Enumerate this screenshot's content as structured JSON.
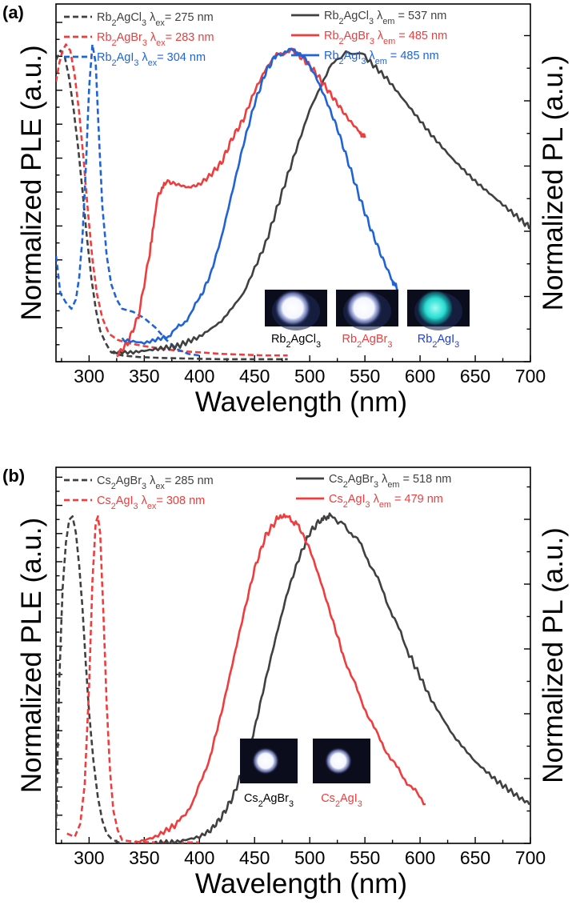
{
  "chart_data": [
    {
      "type": "line",
      "panel": "(a)",
      "xlabel": "Wavelength (nm)",
      "ylabel_left": "Normalized PLE (a.u.)",
      "ylabel_right": "Normalized PL (a.u.)",
      "xlim": [
        270,
        700
      ],
      "ylim": [
        0,
        1.15
      ],
      "xticks": [
        300,
        350,
        400,
        450,
        500,
        550,
        600,
        650,
        700
      ],
      "legend_left": [
        {
          "formula": "Rb2AgCl3",
          "param": "ex",
          "value": "275 nm",
          "color": "#404040",
          "style": "dashed"
        },
        {
          "formula": "Rb2AgBr3",
          "param": "ex",
          "value": "283 nm",
          "color": "#f03c3c",
          "style": "dashed"
        },
        {
          "formula": "Rb2AgI3",
          "param": "ex",
          "value": "304 nm",
          "color": "#1f63d6",
          "style": "dashed"
        }
      ],
      "legend_right": [
        {
          "formula": "Rb2AgCl3",
          "param": "em",
          "value": "537 nm",
          "color": "#404040",
          "style": "solid"
        },
        {
          "formula": "Rb2AgBr3",
          "param": "em",
          "value": "485 nm",
          "color": "#f03c3c",
          "style": "solid"
        },
        {
          "formula": "Rb2AgI3",
          "param": "em",
          "value": "485 nm",
          "color": "#1f63d6",
          "style": "solid"
        }
      ],
      "inset": [
        {
          "formula": "Rb2AgCl3",
          "color": "#000000",
          "glow": "#ffffff"
        },
        {
          "formula": "Rb2AgBr3",
          "color": "#f03c3c",
          "glow": "#ffffff"
        },
        {
          "formula": "Rb2AgI3",
          "color": "#1f3fd6",
          "glow": "#20d8d0"
        }
      ],
      "series": [
        {
          "name": "Rb2AgCl3 ex",
          "color": "#404040",
          "style": "dashed",
          "x": [
            270,
            274,
            278,
            282,
            286,
            290,
            294,
            298,
            302,
            306,
            310,
            315,
            320,
            330,
            345,
            365,
            390,
            420,
            450,
            480
          ],
          "y": [
            0.97,
            1.0,
            0.98,
            0.91,
            0.81,
            0.69,
            0.55,
            0.4,
            0.27,
            0.17,
            0.1,
            0.06,
            0.03,
            0.02,
            0.015,
            0.012,
            0.01,
            0.008,
            0.008,
            0.008
          ]
        },
        {
          "name": "Rb2AgBr3 ex",
          "color": "#f03c3c",
          "style": "dashed",
          "x": [
            270,
            273,
            276,
            279,
            283,
            287,
            291,
            295,
            299,
            303,
            307,
            312,
            318,
            326,
            335,
            350,
            380,
            420,
            460,
            480
          ],
          "y": [
            0.9,
            0.96,
            1.0,
            1.02,
            1.0,
            0.92,
            0.8,
            0.65,
            0.48,
            0.33,
            0.22,
            0.14,
            0.09,
            0.07,
            0.06,
            0.05,
            0.035,
            0.025,
            0.02,
            0.02
          ]
        },
        {
          "name": "Rb2AgI3 ex",
          "color": "#1f63d6",
          "style": "dashed",
          "x": [
            270,
            274,
            279,
            284,
            288,
            291,
            294,
            297,
            300,
            303,
            306,
            309,
            312,
            316,
            320,
            325,
            330,
            340,
            350,
            360,
            370,
            380,
            390,
            400
          ],
          "y": [
            0.34,
            0.22,
            0.19,
            0.17,
            0.2,
            0.27,
            0.4,
            0.62,
            0.88,
            1.02,
            0.96,
            0.72,
            0.5,
            0.34,
            0.25,
            0.2,
            0.17,
            0.16,
            0.14,
            0.11,
            0.07,
            0.04,
            0.025,
            0.02
          ]
        },
        {
          "name": "Rb2AgCl3 em",
          "color": "#404040",
          "style": "solid",
          "x": [
            320,
            340,
            360,
            380,
            400,
            420,
            440,
            460,
            480,
            500,
            520,
            537,
            550,
            570,
            590,
            610,
            630,
            650,
            670,
            690,
            700
          ],
          "y": [
            0.03,
            0.03,
            0.04,
            0.05,
            0.08,
            0.13,
            0.22,
            0.38,
            0.6,
            0.81,
            0.96,
            1.0,
            0.98,
            0.91,
            0.82,
            0.73,
            0.65,
            0.58,
            0.52,
            0.46,
            0.43
          ]
        },
        {
          "name": "Rb2AgBr3 em",
          "color": "#f03c3c",
          "style": "solid",
          "x": [
            325,
            335,
            345,
            355,
            362,
            370,
            380,
            390,
            400,
            410,
            420,
            430,
            440,
            450,
            460,
            470,
            485,
            495,
            505,
            515,
            525,
            535,
            545,
            550
          ],
          "y": [
            0.02,
            0.06,
            0.15,
            0.35,
            0.53,
            0.58,
            0.57,
            0.56,
            0.57,
            0.6,
            0.64,
            0.72,
            0.78,
            0.87,
            0.94,
            0.99,
            1.0,
            0.97,
            0.93,
            0.88,
            0.83,
            0.78,
            0.74,
            0.72
          ]
        },
        {
          "name": "Rb2AgI3 em",
          "color": "#1f63d6",
          "style": "solid",
          "x": [
            330,
            350,
            370,
            385,
            400,
            410,
            420,
            430,
            440,
            450,
            460,
            470,
            485,
            495,
            505,
            515,
            525,
            535,
            545,
            555,
            565,
            575,
            580
          ],
          "y": [
            0.07,
            0.06,
            0.08,
            0.12,
            0.2,
            0.28,
            0.4,
            0.55,
            0.7,
            0.83,
            0.93,
            0.99,
            1.0,
            0.98,
            0.92,
            0.84,
            0.75,
            0.64,
            0.53,
            0.43,
            0.34,
            0.26,
            0.23
          ]
        }
      ]
    },
    {
      "type": "line",
      "panel": "(b)",
      "xlabel": "Wavelength (nm)",
      "ylabel_left": "Normalized PLE (a.u.)",
      "ylabel_right": "Normalized PL (a.u.)",
      "xlim": [
        270,
        700
      ],
      "ylim": [
        0,
        1.15
      ],
      "xticks": [
        300,
        350,
        400,
        450,
        500,
        550,
        600,
        650,
        700
      ],
      "legend_left": [
        {
          "formula": "Cs2AgBr3",
          "param": "ex",
          "value": "285 nm",
          "color": "#404040",
          "style": "dashed"
        },
        {
          "formula": "Cs2AgI3",
          "param": "ex",
          "value": "308 nm",
          "color": "#f03c3c",
          "style": "dashed"
        }
      ],
      "legend_right": [
        {
          "formula": "Cs2AgBr3",
          "param": "em",
          "value": "518 nm",
          "color": "#404040",
          "style": "solid"
        },
        {
          "formula": "Cs2AgI3",
          "param": "em",
          "value": "479 nm",
          "color": "#f03c3c",
          "style": "solid"
        }
      ],
      "inset": [
        {
          "formula": "Cs2AgBr3",
          "color": "#000000",
          "glow": "#ffffff"
        },
        {
          "formula": "Cs2AgI3",
          "color": "#f03c3c",
          "glow": "#ffffff"
        }
      ],
      "series": [
        {
          "name": "Cs2AgBr3 ex",
          "color": "#404040",
          "style": "dashed",
          "x": [
            270,
            273,
            276,
            279,
            282,
            285,
            288,
            291,
            294,
            297,
            300,
            304,
            308,
            312,
            316,
            320,
            325,
            330
          ],
          "y": [
            0.05,
            0.5,
            0.78,
            0.92,
            0.99,
            1.0,
            0.95,
            0.85,
            0.72,
            0.55,
            0.4,
            0.25,
            0.14,
            0.07,
            0.03,
            0.015,
            0.005,
            0.0
          ]
        },
        {
          "name": "Cs2AgI3 ex",
          "color": "#f03c3c",
          "style": "dashed",
          "x": [
            280,
            287,
            292,
            296,
            300,
            303,
            306,
            308,
            310,
            313,
            316,
            319,
            322,
            326,
            330,
            340,
            360,
            400
          ],
          "y": [
            0.03,
            0.02,
            0.06,
            0.18,
            0.48,
            0.8,
            0.98,
            1.0,
            0.95,
            0.7,
            0.42,
            0.22,
            0.1,
            0.04,
            0.01,
            0.005,
            0.003,
            0.003
          ]
        },
        {
          "name": "Cs2AgBr3 em",
          "color": "#404040",
          "style": "solid",
          "x": [
            360,
            380,
            400,
            410,
            420,
            430,
            440,
            450,
            460,
            470,
            480,
            490,
            500,
            510,
            518,
            530,
            545,
            560,
            575,
            590,
            610,
            630,
            650,
            670,
            690,
            700
          ],
          "y": [
            0.0,
            0.005,
            0.02,
            0.04,
            0.08,
            0.14,
            0.23,
            0.35,
            0.5,
            0.64,
            0.77,
            0.87,
            0.95,
            0.99,
            1.0,
            0.98,
            0.92,
            0.82,
            0.7,
            0.58,
            0.44,
            0.33,
            0.25,
            0.19,
            0.14,
            0.12
          ]
        },
        {
          "name": "Cs2AgI3 em",
          "color": "#f03c3c",
          "style": "solid",
          "x": [
            340,
            360,
            380,
            395,
            410,
            420,
            430,
            440,
            450,
            460,
            470,
            479,
            490,
            500,
            510,
            520,
            530,
            545,
            560,
            575,
            590,
            605
          ],
          "y": [
            0.0,
            0.02,
            0.06,
            0.13,
            0.27,
            0.4,
            0.55,
            0.7,
            0.84,
            0.94,
            0.99,
            1.0,
            0.97,
            0.9,
            0.8,
            0.69,
            0.58,
            0.45,
            0.34,
            0.25,
            0.18,
            0.12
          ]
        }
      ]
    }
  ]
}
